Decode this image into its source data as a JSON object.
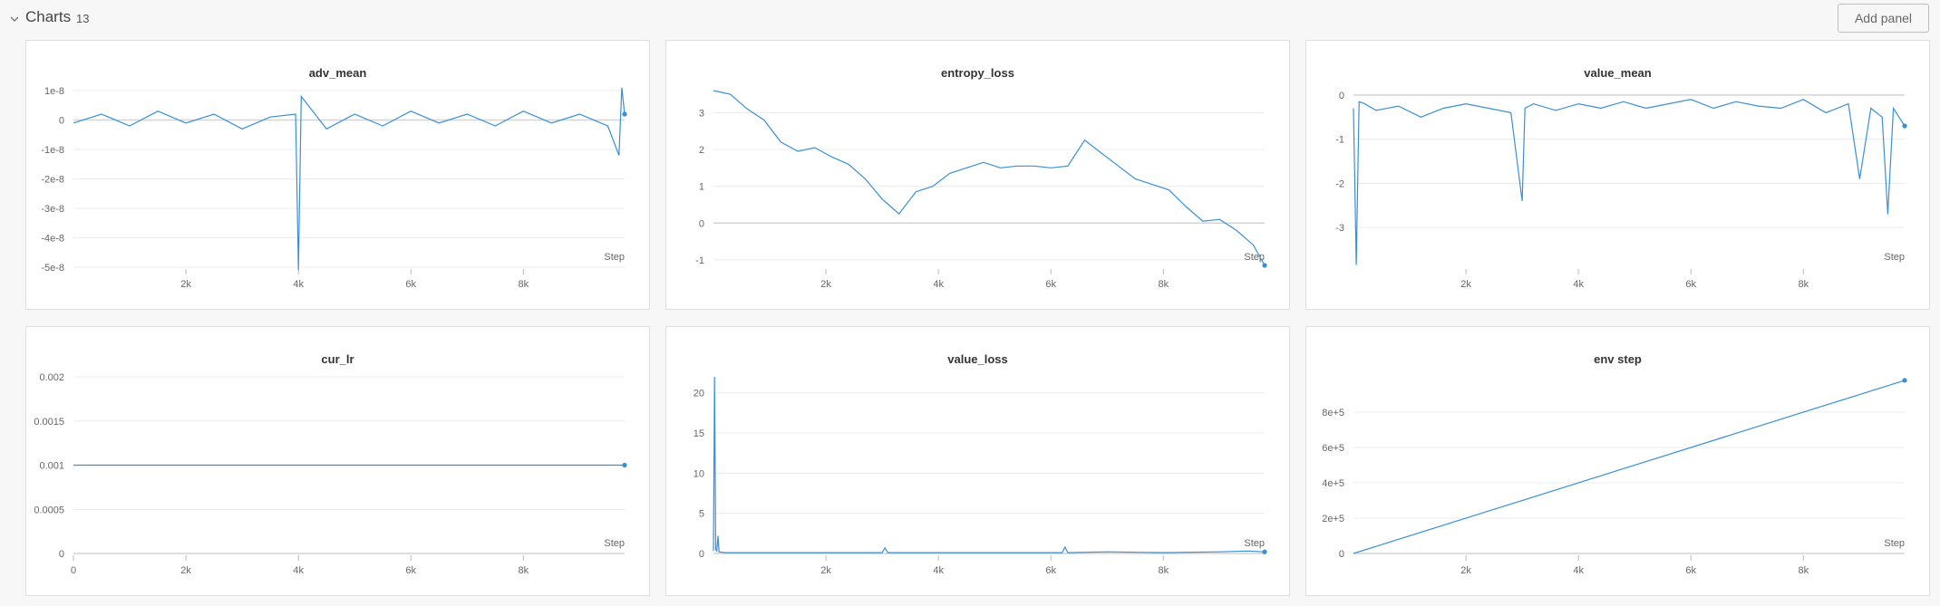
{
  "section": {
    "title": "Charts",
    "count": "13",
    "add_panel_label": "Add panel"
  },
  "colors": {
    "series": "#3a8fd6",
    "background": "#f7f7f7",
    "panel": "#ffffff"
  },
  "icons": {
    "collapse": "chevron-down-icon"
  },
  "panels": [
    {
      "title": "adv_mean",
      "xlabel": "Step",
      "yticks": [
        "1e-8",
        "0",
        "-1e-8",
        "-2e-8",
        "-3e-8",
        "-4e-8",
        "-5e-8"
      ],
      "xticks": [
        "2k",
        "4k",
        "6k",
        "8k"
      ]
    },
    {
      "title": "entropy_loss",
      "xlabel": "Step",
      "yticks": [
        "3",
        "2",
        "1",
        "0",
        "-1"
      ],
      "xticks": [
        "2k",
        "4k",
        "6k",
        "8k"
      ]
    },
    {
      "title": "value_mean",
      "xlabel": "Step",
      "yticks": [
        "0",
        "-1",
        "-2",
        "-3"
      ],
      "xticks": [
        "2k",
        "4k",
        "6k",
        "8k"
      ]
    },
    {
      "title": "cur_lr",
      "xlabel": "Step",
      "yticks": [
        "0.002",
        "0.0015",
        "0.001",
        "0.0005",
        "0"
      ],
      "xticks": [
        "0",
        "2k",
        "4k",
        "6k",
        "8k"
      ]
    },
    {
      "title": "value_loss",
      "xlabel": "Step",
      "yticks": [
        "20",
        "15",
        "10",
        "5",
        "0"
      ],
      "xticks": [
        "2k",
        "4k",
        "6k",
        "8k"
      ]
    },
    {
      "title": "env step",
      "xlabel": "Step",
      "yticks": [
        "8e+5",
        "6e+5",
        "4e+5",
        "2e+5",
        "0"
      ],
      "xticks": [
        "2k",
        "4k",
        "6k",
        "8k"
      ]
    }
  ],
  "chart_data": [
    {
      "type": "line",
      "title": "adv_mean",
      "xlabel": "Step",
      "ylabel": "",
      "xlim": [
        0,
        9800
      ],
      "ylim": [
        -5e-08,
        1e-08
      ],
      "grid": true,
      "legend": "none",
      "x": [
        0,
        500,
        1000,
        1500,
        2000,
        2500,
        3000,
        3500,
        3950,
        4000,
        4050,
        4500,
        5000,
        5500,
        6000,
        6500,
        7000,
        7500,
        8000,
        8500,
        9000,
        9500,
        9700,
        9750,
        9800
      ],
      "y": [
        -1e-09,
        2e-09,
        -2e-09,
        3e-09,
        -1e-09,
        2e-09,
        -3e-09,
        1e-09,
        2e-09,
        -5.1e-08,
        8e-09,
        -3e-09,
        2e-09,
        -2e-09,
        3e-09,
        -1e-09,
        2e-09,
        -2e-09,
        3e-09,
        -1e-09,
        2e-09,
        -2e-09,
        -1.2e-08,
        1.1e-08,
        2e-09
      ]
    },
    {
      "type": "line",
      "title": "entropy_loss",
      "xlabel": "Step",
      "ylabel": "",
      "xlim": [
        0,
        9800
      ],
      "ylim": [
        -1.2,
        3.6
      ],
      "grid": true,
      "legend": "none",
      "x": [
        0,
        300,
        600,
        900,
        1200,
        1500,
        1800,
        2100,
        2400,
        2700,
        3000,
        3300,
        3600,
        3900,
        4200,
        4500,
        4800,
        5100,
        5400,
        5700,
        6000,
        6300,
        6600,
        6900,
        7200,
        7500,
        7800,
        8100,
        8400,
        8700,
        9000,
        9300,
        9600,
        9800
      ],
      "y": [
        3.6,
        3.5,
        3.1,
        2.8,
        2.2,
        1.95,
        2.05,
        1.8,
        1.6,
        1.2,
        0.65,
        0.25,
        0.85,
        1.0,
        1.35,
        1.5,
        1.65,
        1.5,
        1.55,
        1.55,
        1.5,
        1.55,
        2.25,
        1.9,
        1.55,
        1.2,
        1.05,
        0.9,
        0.45,
        0.05,
        0.1,
        -0.2,
        -0.6,
        -1.15
      ]
    },
    {
      "type": "line",
      "title": "value_mean",
      "xlabel": "Step",
      "ylabel": "",
      "xlim": [
        0,
        9800
      ],
      "ylim": [
        -3.9,
        0.1
      ],
      "grid": true,
      "legend": "none",
      "x": [
        0,
        50,
        100,
        200,
        400,
        800,
        1200,
        1600,
        2000,
        2400,
        2800,
        3000,
        3050,
        3200,
        3600,
        4000,
        4400,
        4800,
        5200,
        5600,
        6000,
        6400,
        6800,
        7200,
        7600,
        8000,
        8400,
        8800,
        9000,
        9200,
        9400,
        9500,
        9600,
        9800
      ],
      "y": [
        -0.3,
        -3.85,
        -0.15,
        -0.2,
        -0.35,
        -0.25,
        -0.5,
        -0.3,
        -0.2,
        -0.3,
        -0.4,
        -2.4,
        -0.3,
        -0.2,
        -0.35,
        -0.2,
        -0.3,
        -0.15,
        -0.3,
        -0.2,
        -0.1,
        -0.3,
        -0.15,
        -0.25,
        -0.3,
        -0.1,
        -0.4,
        -0.2,
        -1.9,
        -0.3,
        -0.5,
        -2.7,
        -0.3,
        -0.7
      ]
    },
    {
      "type": "line",
      "title": "cur_lr",
      "xlabel": "Step",
      "ylabel": "",
      "xlim": [
        0,
        9800
      ],
      "ylim": [
        0,
        0.002
      ],
      "grid": true,
      "legend": "none",
      "x": [
        0,
        9800
      ],
      "y": [
        0.001,
        0.001
      ]
    },
    {
      "type": "line",
      "title": "value_loss",
      "xlabel": "Step",
      "ylabel": "",
      "xlim": [
        0,
        9800
      ],
      "ylim": [
        0,
        22
      ],
      "grid": true,
      "legend": "none",
      "x": [
        0,
        20,
        40,
        60,
        80,
        100,
        200,
        400,
        1000,
        2000,
        3000,
        3050,
        3100,
        4000,
        5000,
        6200,
        6250,
        6300,
        7000,
        8000,
        9000,
        9500,
        9800
      ],
      "y": [
        0.3,
        22,
        0.5,
        0.3,
        2.2,
        0.2,
        0.1,
        0.1,
        0.1,
        0.1,
        0.1,
        0.7,
        0.1,
        0.1,
        0.1,
        0.1,
        0.8,
        0.1,
        0.2,
        0.1,
        0.2,
        0.3,
        0.2
      ]
    },
    {
      "type": "line",
      "title": "env step",
      "xlabel": "Step",
      "ylabel": "",
      "xlim": [
        0,
        9800
      ],
      "ylim": [
        0,
        1000000
      ],
      "grid": true,
      "legend": "none",
      "x": [
        0,
        9800
      ],
      "y": [
        0,
        980000
      ]
    }
  ]
}
